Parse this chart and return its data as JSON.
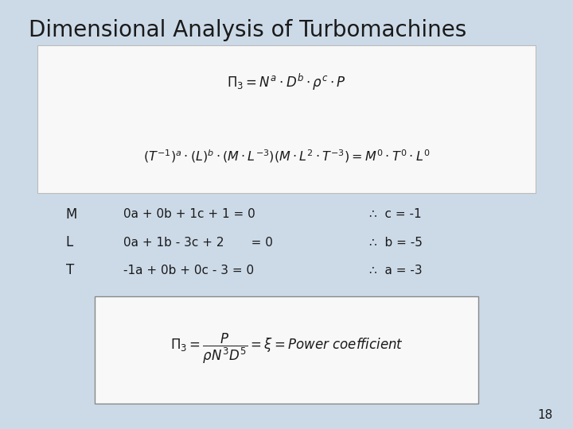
{
  "title": "Dimensional Analysis of Turbomachines",
  "bg_color": "#ccdae8",
  "title_fontsize": 20,
  "eq1_top": "$\\Pi_3 = N^a \\cdot D^b \\cdot \\rho^c \\cdot P$",
  "eq1_bottom": "$\\left(T^{-1}\\right)^a \\cdot \\left(L\\right)^b \\cdot \\left(M \\cdot L^{-3}\\right)\\left(M \\cdot L^{2} \\cdot T^{-3}\\right) = M^0 \\cdot T^0 \\cdot L^0$",
  "eq2": "$\\Pi_3 = \\dfrac{P}{\\rho N^3 D^5} = \\xi = Power\\ coefficient$",
  "row_labels": [
    "M",
    "L",
    "T"
  ],
  "row_eqs": [
    "0a + 0b + 1c + 1 = 0",
    "0a + 1b - 3c + 2       = 0",
    "-1a + 0b + 0c - 3 = 0"
  ],
  "row_results": [
    "∴  c = -1",
    "∴  b = -5",
    "∴  a = -3"
  ],
  "page_number": "18",
  "box1_color": "#f8f8f8",
  "box2_color": "#f8f8f8",
  "text_color": "#1a1a1a",
  "box1_edge": "#bbbbbb",
  "box2_edge": "#888888"
}
